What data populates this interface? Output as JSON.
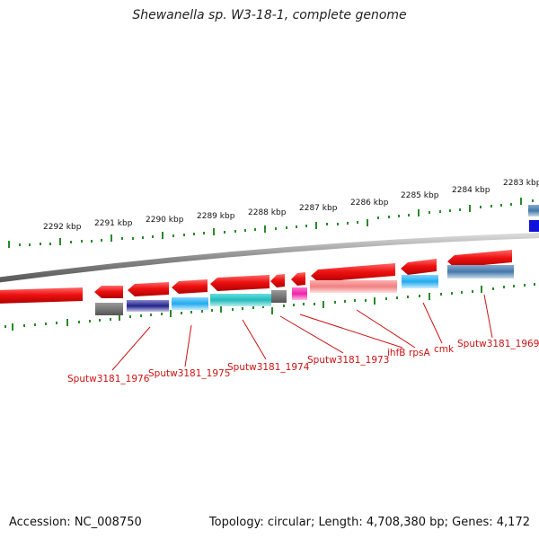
{
  "title": "Shewanella sp. W3-18-1, complete genome",
  "accession_label": "Accession: NC_008750",
  "topology_label": "Topology: circular; Length: 4,708,380 bp; Genes: 4,172",
  "kbp_labels": [
    "2292 kbp",
    "2291 kbp",
    "2290 kbp",
    "2289 kbp",
    "2288 kbp",
    "2287 kbp",
    "2286 kbp",
    "2285 kbp",
    "2284 kbp",
    "2283 kbp"
  ],
  "gene_labels": [
    "Sputw3181_1976",
    "Sputw3181_1975",
    "Sputw3181_1974",
    "Sputw3181_1973",
    "ihfB",
    "rpsA",
    "cmk",
    "Sputw3181_1969"
  ],
  "colors": {
    "backbone": "#8a8a8a",
    "cds_red": "#ee1111",
    "tick_green": "#2a8a2a",
    "label_red": "#cc1111",
    "dark_gray": "#606060",
    "navy": "#22228a",
    "sky_blue": "#22aaee",
    "teal": "#22bbbb",
    "magenta": "#ee22aa",
    "salmon": "#f08080",
    "steel_blue": "#4477aa",
    "blue": "#1111dd"
  }
}
